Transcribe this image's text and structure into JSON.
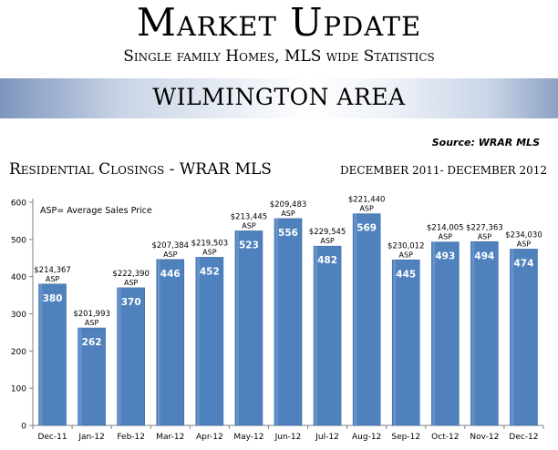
{
  "header": {
    "title": "Market Update",
    "subtitle": "Single family Homes, MLS wide Statistics",
    "banner": "WILMINGTON AREA",
    "source": "Source: WRAR MLS",
    "chart_heading": "Residential Closings - WRAR MLS",
    "date_range": "DECEMBER 2011- DECEMBER 2012"
  },
  "colors": {
    "bar": "#4f81bd",
    "bar_edge": "#3c6aa3",
    "banner": "#7d95bd"
  },
  "chart_data": {
    "type": "bar",
    "title": "",
    "annotation": "ASP= Average Sales Price",
    "sub_label": "ASP",
    "categories": [
      "Dec-11",
      "Jan-12",
      "Feb-12",
      "Mar-12",
      "Apr-12",
      "May-12",
      "Jun-12",
      "Jul-12",
      "Aug-12",
      "Sep-12",
      "Oct-12",
      "Nov-12",
      "Dec-12"
    ],
    "values": [
      380,
      262,
      370,
      446,
      452,
      523,
      556,
      482,
      569,
      445,
      493,
      494,
      474
    ],
    "asp": [
      "$214,367",
      "$201,993",
      "$222,390",
      "$207,384",
      "$219,503",
      "$213,445",
      "$209,483",
      "$229,545",
      "$221,440",
      "$230,012",
      "$214,005",
      "$227,363",
      "$234,030"
    ],
    "ylim": [
      0,
      600
    ],
    "yticks": [
      0,
      100,
      200,
      300,
      400,
      500,
      600
    ],
    "grid": false,
    "xlabel": "",
    "ylabel": ""
  }
}
